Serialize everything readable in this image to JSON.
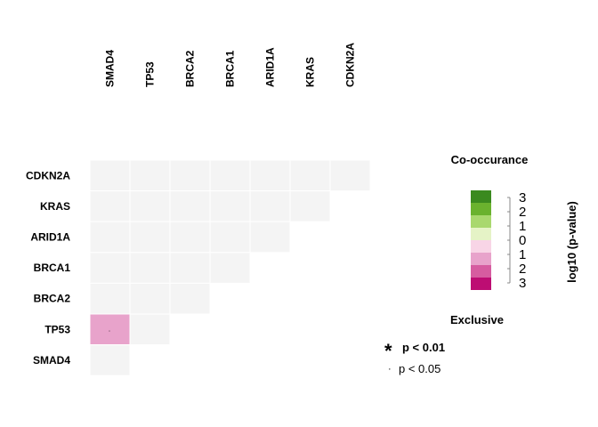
{
  "chart_data": {
    "type": "heatmap",
    "genes_columns": [
      "SMAD4",
      "TP53",
      "BRCA2",
      "BRCA1",
      "ARID1A",
      "KRAS",
      "CDKN2A"
    ],
    "genes_rows": [
      "CDKN2A",
      "KRAS",
      "ARID1A",
      "BRCA1",
      "BRCA2",
      "TP53",
      "SMAD4"
    ],
    "cells": [
      {
        "row": "CDKN2A",
        "col": "SMAD4",
        "value": 0
      },
      {
        "row": "CDKN2A",
        "col": "TP53",
        "value": 0
      },
      {
        "row": "CDKN2A",
        "col": "BRCA2",
        "value": 0
      },
      {
        "row": "CDKN2A",
        "col": "BRCA1",
        "value": 0
      },
      {
        "row": "CDKN2A",
        "col": "ARID1A",
        "value": 0
      },
      {
        "row": "CDKN2A",
        "col": "KRAS",
        "value": 0
      },
      {
        "row": "CDKN2A",
        "col": "CDKN2A",
        "value": 0
      },
      {
        "row": "KRAS",
        "col": "SMAD4",
        "value": 0
      },
      {
        "row": "KRAS",
        "col": "TP53",
        "value": 0
      },
      {
        "row": "KRAS",
        "col": "BRCA2",
        "value": 0
      },
      {
        "row": "KRAS",
        "col": "BRCA1",
        "value": 0
      },
      {
        "row": "KRAS",
        "col": "ARID1A",
        "value": 0
      },
      {
        "row": "KRAS",
        "col": "KRAS",
        "value": 0
      },
      {
        "row": "ARID1A",
        "col": "SMAD4",
        "value": 0
      },
      {
        "row": "ARID1A",
        "col": "TP53",
        "value": 0
      },
      {
        "row": "ARID1A",
        "col": "BRCA2",
        "value": 0
      },
      {
        "row": "ARID1A",
        "col": "BRCA1",
        "value": 0
      },
      {
        "row": "ARID1A",
        "col": "ARID1A",
        "value": 0
      },
      {
        "row": "BRCA1",
        "col": "SMAD4",
        "value": 0
      },
      {
        "row": "BRCA1",
        "col": "TP53",
        "value": 0
      },
      {
        "row": "BRCA1",
        "col": "BRCA2",
        "value": 0
      },
      {
        "row": "BRCA1",
        "col": "BRCA1",
        "value": 0
      },
      {
        "row": "BRCA2",
        "col": "SMAD4",
        "value": 0
      },
      {
        "row": "BRCA2",
        "col": "TP53",
        "value": 0
      },
      {
        "row": "BRCA2",
        "col": "BRCA2",
        "value": 0
      },
      {
        "row": "TP53",
        "col": "SMAD4",
        "value": -1,
        "significance": "."
      },
      {
        "row": "TP53",
        "col": "TP53",
        "value": 0
      },
      {
        "row": "SMAD4",
        "col": "SMAD4",
        "value": 0
      }
    ],
    "legend": {
      "title_top": "Co-occurance",
      "title_bottom": "Exclusive",
      "scale_title": "log10 (p-value)",
      "ticks": [
        "3",
        "2",
        "1",
        "0",
        "1",
        "2",
        "3"
      ],
      "colors": [
        "#3b8a1f",
        "#6ab22e",
        "#a9d86e",
        "#e5f3c6",
        "#f8d5e6",
        "#e8a3cb",
        "#d65ca0",
        "#bd0d73"
      ],
      "empty_color": "#f4f4f4"
    },
    "significance_legend": [
      {
        "symbol": "*",
        "label": "p < 0.01"
      },
      {
        "symbol": "·",
        "label": "p < 0.05"
      }
    ]
  }
}
